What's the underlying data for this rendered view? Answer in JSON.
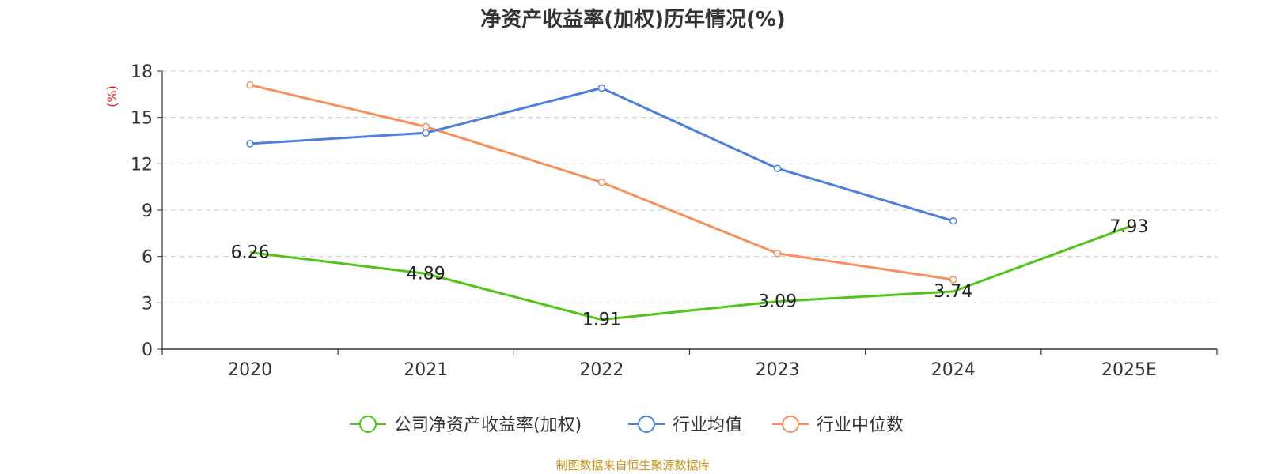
{
  "chart_data": {
    "type": "line",
    "title": "净资产收益率(加权)历年情况(%)",
    "ylabel": "(%)",
    "xlabel": "",
    "ylim": [
      0,
      18
    ],
    "yticks": [
      0,
      3,
      6,
      9,
      12,
      15,
      18
    ],
    "grid": true,
    "legend_position": "bottom",
    "categories": [
      "2020",
      "2021",
      "2022",
      "2023",
      "2024",
      "2025E"
    ],
    "series": [
      {
        "name": "公司净资产收益率(加权)",
        "color": "#52c41a",
        "values": [
          6.26,
          4.89,
          1.91,
          3.09,
          3.74,
          7.93
        ],
        "labels": [
          "6.26",
          "4.89",
          "1.91",
          "3.09",
          "3.74",
          "7.93"
        ]
      },
      {
        "name": "行业均值",
        "color": "#4e7fdf",
        "values": [
          13.3,
          14.0,
          16.9,
          11.7,
          8.3,
          null
        ]
      },
      {
        "name": "行业中位数",
        "color": "#f7905c",
        "values": [
          17.1,
          14.4,
          10.8,
          6.2,
          4.5,
          null
        ]
      }
    ]
  },
  "source": {
    "text": "制图数据来自恒生聚源数据库",
    "color": "#c8961e"
  },
  "ylabel_color": "#e02020"
}
